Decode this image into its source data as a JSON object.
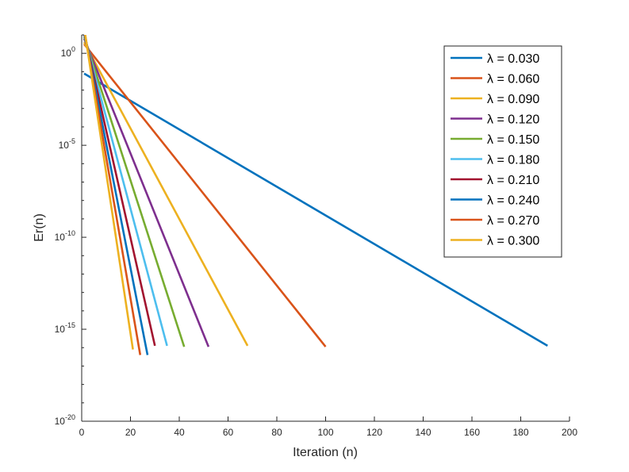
{
  "chart_data": {
    "type": "line",
    "xlabel": "Iteration (n)",
    "ylabel": "Er(n)",
    "xlim": [
      0,
      200
    ],
    "ylim_exponent": [
      -20,
      1
    ],
    "y_scale": "log",
    "grid": false,
    "legend_position": "top-right",
    "x_ticks": [
      {
        "value": 0,
        "label": "0"
      },
      {
        "value": 20,
        "label": "20"
      },
      {
        "value": 40,
        "label": "40"
      },
      {
        "value": 60,
        "label": "60"
      },
      {
        "value": 80,
        "label": "80"
      },
      {
        "value": 100,
        "label": "100"
      },
      {
        "value": 120,
        "label": "120"
      },
      {
        "value": 140,
        "label": "140"
      },
      {
        "value": 160,
        "label": "160"
      },
      {
        "value": 180,
        "label": "180"
      },
      {
        "value": 200,
        "label": "200"
      }
    ],
    "y_ticks": [
      {
        "exponent": 0,
        "base": "10",
        "sup": "0"
      },
      {
        "exponent": -5,
        "base": "10",
        "sup": "-5"
      },
      {
        "exponent": -10,
        "base": "10",
        "sup": "-10"
      },
      {
        "exponent": -15,
        "base": "10",
        "sup": "-15"
      },
      {
        "exponent": -20,
        "base": "10",
        "sup": "-20"
      }
    ],
    "series": [
      {
        "name": "λ = 0.030",
        "color": "#0072BD",
        "points": [
          [
            1,
            -1.1
          ],
          [
            191,
            -15.9
          ]
        ]
      },
      {
        "name": "λ = 0.060",
        "color": "#D95319",
        "points": [
          [
            1,
            0.5
          ],
          [
            100,
            -15.95
          ]
        ]
      },
      {
        "name": "λ = 0.090",
        "color": "#EDB120",
        "points": [
          [
            1,
            0.6
          ],
          [
            68,
            -15.9
          ]
        ]
      },
      {
        "name": "λ = 0.120",
        "color": "#7E2F8E",
        "points": [
          [
            1,
            0.8
          ],
          [
            52,
            -15.95
          ]
        ]
      },
      {
        "name": "λ = 0.150",
        "color": "#77AC30",
        "points": [
          [
            1,
            0.9
          ],
          [
            42,
            -15.95
          ]
        ]
      },
      {
        "name": "λ = 0.180",
        "color": "#4DBEEE",
        "points": [
          [
            1,
            1.0
          ],
          [
            35,
            -15.9
          ]
        ]
      },
      {
        "name": "λ = 0.210",
        "color": "#A2142F",
        "points": [
          [
            1,
            1.1
          ],
          [
            30,
            -15.9
          ]
        ]
      },
      {
        "name": "λ = 0.240",
        "color": "#0072BD",
        "points": [
          [
            1,
            1.2
          ],
          [
            27,
            -16.4
          ]
        ]
      },
      {
        "name": "λ = 0.270",
        "color": "#D95319",
        "points": [
          [
            1,
            1.3
          ],
          [
            24,
            -16.4
          ]
        ]
      },
      {
        "name": "λ = 0.300",
        "color": "#EDB120",
        "points": [
          [
            1,
            1.4
          ],
          [
            21,
            -16.1
          ]
        ]
      }
    ]
  }
}
